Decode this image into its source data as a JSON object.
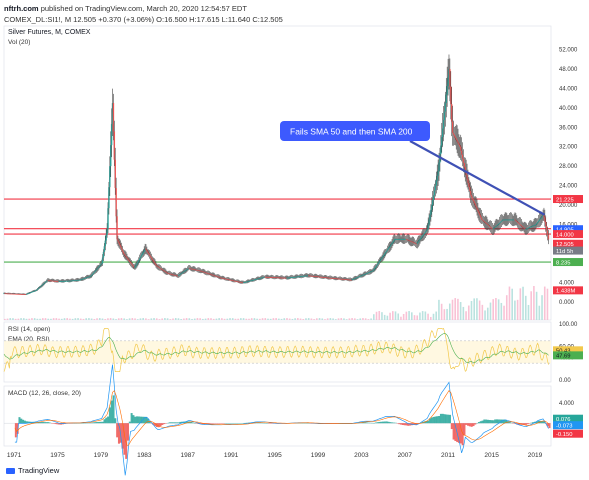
{
  "header": {
    "publisher": "nftrh.com",
    "published_text": "published on TradingView.com, March 20, 2020 12:54:57 EDT",
    "symbol_line": "COMEX_DL:SI1!, M  12.505  +0.370 (+3.06%)  O:16.500  H:17.615  L:11.640  C:12.505"
  },
  "main_panel": {
    "title": "Silver Futures, M, COMEX",
    "vol_label": "Vol (20)",
    "annotation": "Fails SMA 50 and then SMA 200"
  },
  "price_axis": {
    "ticks": [
      "52.000",
      "48.000",
      "44.000",
      "40.000",
      "36.000",
      "32.000",
      "28.000",
      "24.000",
      "20.000",
      "16.000",
      "12.000",
      "8.000",
      "4.000",
      "0.000"
    ],
    "tags": [
      {
        "text": "21.225",
        "color": "#f23645"
      },
      {
        "text": "14.905",
        "color": "#2962ff"
      },
      {
        "text": "14.000",
        "color": "#f23645"
      },
      {
        "text": "12.505",
        "color": "#f23645"
      },
      {
        "text": "11d 5h",
        "color": "#787b86"
      },
      {
        "text": "8.235",
        "color": "#4caf50"
      },
      {
        "text": "1.438M",
        "color": "#f23645"
      }
    ]
  },
  "hlines": [
    {
      "value": 21.225,
      "color": "#f23645"
    },
    {
      "value": 15.1,
      "color": "#f23645"
    },
    {
      "value": 14.0,
      "color": "#f23645"
    },
    {
      "value": 8.235,
      "color": "#4caf50"
    }
  ],
  "rsi_panel": {
    "rsi_label": "RSI (14, open)",
    "ema_label": "EMA (20, RSI)",
    "ticks": [
      "100.00",
      "60.00",
      "40.00",
      "0.00"
    ],
    "tags": [
      {
        "text": "50.43",
        "color": "#f2c94c"
      },
      {
        "text": "47.69",
        "color": "#4caf50"
      }
    ]
  },
  "macd_panel": {
    "label": "MACD (12, 26, close, 20)",
    "ticks": [
      "4.000",
      "0.000"
    ],
    "tags": [
      {
        "text": "0.076",
        "color": "#26a69a"
      },
      {
        "text": "-0.073",
        "color": "#2196f3"
      },
      {
        "text": "-0.150",
        "color": "#f23645"
      }
    ]
  },
  "time_axis": [
    "1971",
    "1975",
    "1979",
    "1983",
    "1987",
    "1991",
    "1995",
    "1999",
    "2003",
    "2007",
    "2011",
    "2015",
    "2019"
  ],
  "footer": {
    "brand": "TradingView"
  },
  "chart_data": {
    "type": "line",
    "title": "Silver Futures, M, COMEX",
    "x": [
      1970,
      1972,
      1973,
      1974,
      1975,
      1976,
      1977,
      1978,
      1979,
      1979.5,
      1980,
      1980.4,
      1981,
      1982,
      1983,
      1984,
      1985,
      1986,
      1987,
      1988,
      1990,
      1992,
      1994,
      1996,
      1998,
      2000,
      2002,
      2004,
      2006,
      2007,
      2008,
      2009,
      2010,
      2011,
      2011.3,
      2012,
      2013,
      2014,
      2015,
      2016,
      2017,
      2018,
      2019,
      2019.7,
      2020.2
    ],
    "series": [
      {
        "values": [
          1.8,
          1.6,
          2.5,
          4.5,
          4.3,
          4.4,
          4.6,
          5.4,
          8,
          15,
          41,
          13,
          10,
          7,
          11,
          7.5,
          6,
          5.4,
          7,
          6.5,
          5,
          4,
          5.2,
          5,
          5.5,
          5,
          4.6,
          6.5,
          13,
          13,
          12,
          15,
          27,
          48,
          35,
          32,
          22,
          17,
          15,
          17,
          17,
          15,
          16,
          18,
          12.5
        ]
      }
    ],
    "ylim": [
      0,
      54
    ]
  }
}
